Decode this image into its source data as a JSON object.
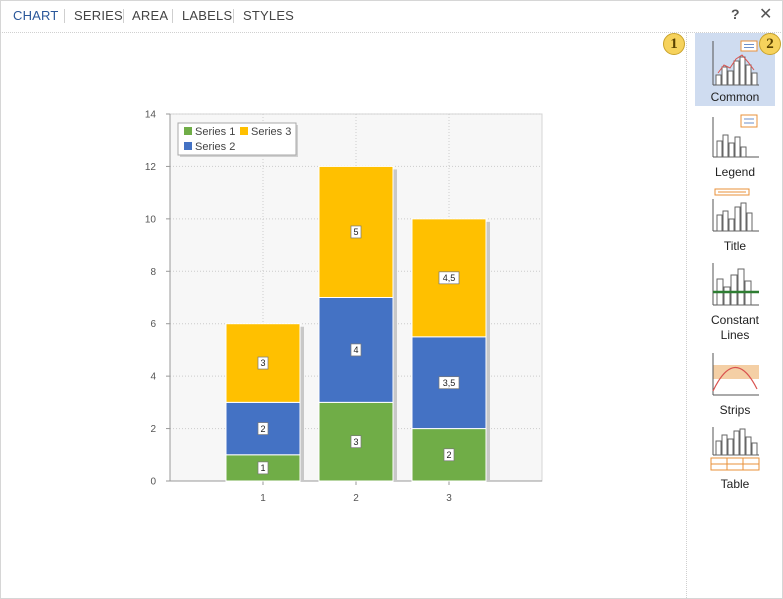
{
  "tabs": [
    {
      "label": "CHART",
      "active": true
    },
    {
      "label": "SERIES",
      "active": false
    },
    {
      "label": "AREA",
      "active": false
    },
    {
      "label": "LABELS",
      "active": false
    },
    {
      "label": "STYLES",
      "active": false
    }
  ],
  "window_buttons": {
    "help": "?",
    "close": "✕"
  },
  "badges": [
    "1",
    "2"
  ],
  "sidebar": {
    "items": [
      {
        "label": "Common",
        "icon": "common-chart-icon",
        "selected": true
      },
      {
        "label": "Legend",
        "icon": "legend-chart-icon",
        "selected": false
      },
      {
        "label": "Title",
        "icon": "title-chart-icon",
        "selected": false
      },
      {
        "label": "Constant Lines",
        "label_lines": [
          "Constant",
          "Lines"
        ],
        "icon": "constant-lines-chart-icon",
        "selected": false
      },
      {
        "label": "Strips",
        "icon": "strips-chart-icon",
        "selected": false
      },
      {
        "label": "Table",
        "icon": "table-chart-icon",
        "selected": false
      }
    ]
  },
  "colors": {
    "series1": "#70ad47",
    "series2": "#4472c4",
    "series3": "#ffc000",
    "accent": "#2a579a",
    "selected_bg": "#cfdcf0"
  },
  "chart_data": {
    "type": "bar",
    "stacked": true,
    "categories": [
      "1",
      "2",
      "3"
    ],
    "series": [
      {
        "name": "Series 1",
        "values": [
          1,
          3,
          2
        ],
        "labels": [
          "1",
          "3",
          "2"
        ]
      },
      {
        "name": "Series 2",
        "values": [
          2,
          4,
          3.5
        ],
        "labels": [
          "2",
          "4",
          "3,5"
        ]
      },
      {
        "name": "Series 3",
        "values": [
          3,
          5,
          4.5
        ],
        "labels": [
          "3",
          "5",
          "4,5"
        ]
      }
    ],
    "ylim": [
      0,
      14
    ],
    "yticks": [
      0,
      2,
      4,
      6,
      8,
      10,
      12,
      14
    ],
    "grid": true,
    "legend": {
      "position": "top-left",
      "entries": [
        "Series 1",
        "Series 3",
        "Series 2"
      ]
    }
  }
}
